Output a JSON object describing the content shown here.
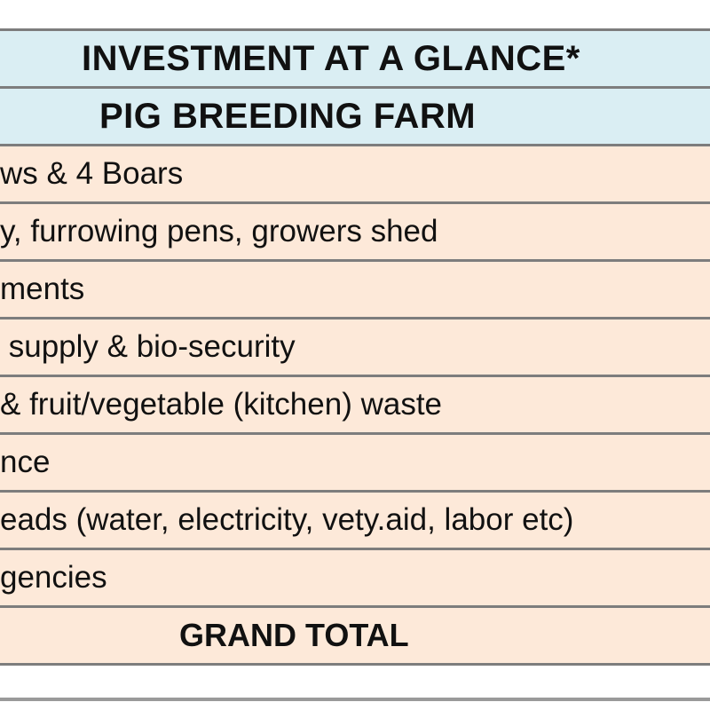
{
  "table": {
    "title": "INVESTMENT AT A GLANCE*",
    "subtitle": "PIG BREEDING FARM",
    "rows": [
      "ws & 4 Boars",
      "y, furrowing pens, growers shed",
      "ments",
      " supply & bio-security",
      "& fruit/vegetable (kitchen) waste",
      "nce",
      "eads (water, electricity, vety.aid, labor etc)",
      "gencies"
    ],
    "grand_total_label": "GRAND TOTAL"
  },
  "colors": {
    "header_fill": "#daeef3",
    "row_fill": "#fde9d9",
    "grid_line": "#7d7d7d"
  }
}
